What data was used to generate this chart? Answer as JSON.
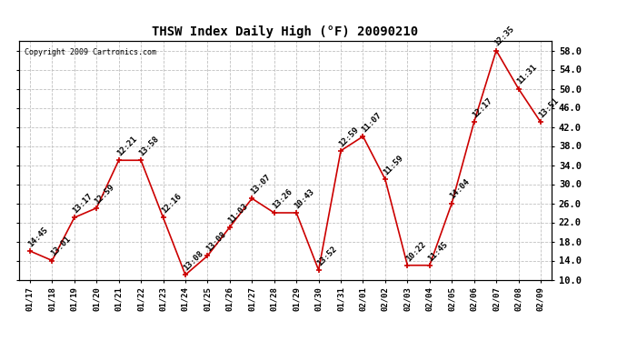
{
  "title": "THSW Index Daily High (°F) 20090210",
  "copyright": "Copyright 2009 Cartronics.com",
  "dates": [
    "01/17",
    "01/18",
    "01/19",
    "01/20",
    "01/21",
    "01/22",
    "01/23",
    "01/24",
    "01/25",
    "01/26",
    "01/27",
    "01/28",
    "01/29",
    "01/30",
    "01/31",
    "02/01",
    "02/02",
    "02/03",
    "02/04",
    "02/05",
    "02/06",
    "02/07",
    "02/08",
    "02/09"
  ],
  "values": [
    16.0,
    14.0,
    23.0,
    25.0,
    35.0,
    35.0,
    23.0,
    11.0,
    15.0,
    21.0,
    27.0,
    24.0,
    24.0,
    12.0,
    37.0,
    40.0,
    31.0,
    13.0,
    13.0,
    26.0,
    43.0,
    58.0,
    50.0,
    43.0
  ],
  "labels": [
    "14:45",
    "13:01",
    "13:17",
    "12:59",
    "12:21",
    "13:58",
    "12:16",
    "13:08",
    "13:08",
    "11:03",
    "13:07",
    "13:26",
    "10:43",
    "13:52",
    "12:59",
    "11:07",
    "11:59",
    "10:22",
    "11:45",
    "14:04",
    "12:17",
    "12:35",
    "11:31",
    "13:51"
  ],
  "ylim": [
    10.0,
    60.0
  ],
  "yticks": [
    10.0,
    14.0,
    18.0,
    22.0,
    26.0,
    30.0,
    34.0,
    38.0,
    42.0,
    46.0,
    50.0,
    54.0,
    58.0
  ],
  "line_color": "#cc0000",
  "marker_color": "#cc0000",
  "bg_color": "#ffffff",
  "grid_color": "#c0c0c0",
  "label_fontsize": 6.5,
  "title_fontsize": 10,
  "xtick_fontsize": 6.5,
  "ytick_fontsize": 7.5
}
